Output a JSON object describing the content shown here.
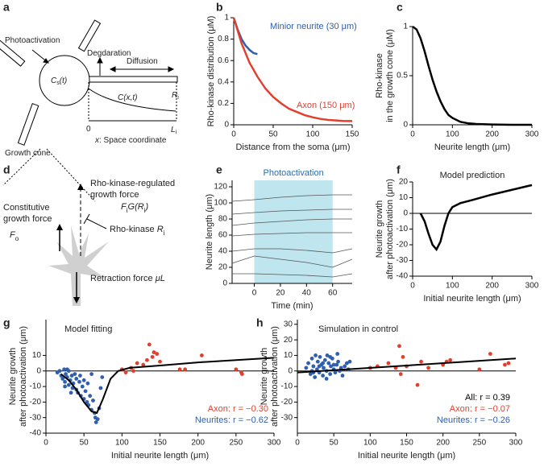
{
  "panels": [
    "a",
    "b",
    "c",
    "d",
    "e",
    "f",
    "g",
    "h"
  ],
  "diagram_a": {
    "labels": [
      {
        "parts": [
          {
            "t": "Photoactivation"
          }
        ]
      },
      {
        "parts": [
          {
            "t": "C",
            "i": true
          },
          {
            "t": "s",
            "sub": true
          },
          {
            "t": "(t)",
            "i": true
          }
        ]
      },
      {
        "parts": [
          {
            "t": "Degdaration"
          }
        ]
      },
      {
        "parts": [
          {
            "t": "Diffusion"
          }
        ]
      },
      {
        "parts": [
          {
            "t": "C(x,t)",
            "i": true
          }
        ]
      },
      {
        "parts": [
          {
            "t": "R",
            "i": true
          },
          {
            "t": "i",
            "sub": true
          }
        ]
      },
      {
        "parts": [
          {
            "t": "0"
          }
        ]
      },
      {
        "parts": [
          {
            "t": "L",
            "i": true
          },
          {
            "t": "i",
            "sub": true
          }
        ]
      },
      {
        "parts": [
          {
            "t": "x",
            "i": true
          },
          {
            "t": ": Space coordinate"
          }
        ]
      },
      {
        "parts": [
          {
            "t": "Growth cone"
          }
        ]
      }
    ]
  },
  "diagram_d": {
    "labels": [
      {
        "parts": [
          {
            "t": "Rho-kinase-regulated"
          }
        ]
      },
      {
        "parts": [
          {
            "t": "growth force"
          }
        ]
      },
      {
        "parts": [
          {
            "t": "F",
            "i": true
          },
          {
            "t": "i",
            "sub": true
          },
          {
            "t": "G(R",
            "i": true
          },
          {
            "t": "i",
            "sub": true
          },
          {
            "t": ")",
            "i": true
          }
        ]
      },
      {
        "parts": [
          {
            "t": "Constitutive"
          }
        ]
      },
      {
        "parts": [
          {
            "t": "growth force"
          }
        ]
      },
      {
        "parts": [
          {
            "t": "F",
            "i": true
          },
          {
            "t": "o",
            "sub": true
          }
        ]
      },
      {
        "parts": [
          {
            "t": "Rho-kinase "
          },
          {
            "t": "R",
            "i": true
          },
          {
            "t": "i",
            "sub": true
          }
        ]
      },
      {
        "parts": [
          {
            "t": "Retraction force "
          },
          {
            "t": "μL",
            "i": true
          }
        ]
      }
    ]
  },
  "chart_data": [
    {
      "type": "line",
      "xlabel": "Distance from the soma (μm)",
      "ylabel": [
        "Rho-kinase distribution (μM)"
      ],
      "xlim": [
        0,
        150
      ],
      "ylim": [
        0,
        1
      ],
      "xticks": [
        0,
        50,
        100,
        150
      ],
      "yticks": [
        0,
        0.2,
        0.4,
        0.6,
        0.8,
        1
      ],
      "series": [
        {
          "name": "Minior neurite (30 μm)",
          "color": "#2f5fae",
          "x": [
            0,
            5,
            10,
            15,
            20,
            25,
            30
          ],
          "values": [
            1,
            0.89,
            0.8,
            0.74,
            0.7,
            0.67,
            0.66
          ]
        },
        {
          "name": "Axon (150 μm)",
          "color": "#e2402e",
          "x": [
            0,
            10,
            20,
            30,
            40,
            50,
            60,
            70,
            80,
            90,
            100,
            110,
            120,
            130,
            140,
            150
          ],
          "values": [
            1,
            0.76,
            0.58,
            0.45,
            0.34,
            0.26,
            0.2,
            0.15,
            0.12,
            0.09,
            0.07,
            0.055,
            0.045,
            0.04,
            0.035,
            0.035
          ]
        }
      ]
    },
    {
      "type": "line",
      "xlabel": "Neurite length (μm)",
      "ylabel": [
        "Rho-kinase",
        "in the growth cone (μM)"
      ],
      "xlim": [
        0,
        300
      ],
      "ylim": [
        0,
        1
      ],
      "xticks": [
        0,
        100,
        200,
        300
      ],
      "yticks": [
        0,
        0.5,
        1
      ],
      "series": [
        {
          "color": "#000000",
          "x": [
            0,
            10,
            20,
            30,
            40,
            50,
            60,
            70,
            80,
            90,
            100,
            120,
            140,
            160,
            200,
            250,
            300
          ],
          "values": [
            1,
            0.97,
            0.88,
            0.75,
            0.6,
            0.46,
            0.34,
            0.24,
            0.16,
            0.1,
            0.07,
            0.03,
            0.015,
            0.008,
            0.003,
            0,
            0
          ]
        }
      ]
    },
    {
      "type": "line",
      "xlabel": "Time (min)",
      "ylabel": [
        "Neurite length (μm)"
      ],
      "xlim": [
        -17,
        75
      ],
      "ylim": [
        0,
        128
      ],
      "xticks": [
        0,
        20,
        40,
        60
      ],
      "yticks": [
        0,
        20,
        40,
        60,
        80,
        100,
        120
      ],
      "shade": {
        "xrange": [
          0,
          60
        ],
        "label": "Photoactivation",
        "color": "#bfe5ee"
      },
      "series": [
        {
          "color": "#555555",
          "x": [
            -17,
            0,
            20,
            40,
            60,
            75
          ],
          "values": [
            102,
            104,
            107,
            109,
            110,
            110
          ]
        },
        {
          "color": "#555555",
          "x": [
            -17,
            0,
            20,
            40,
            60,
            75
          ],
          "values": [
            86,
            88,
            90,
            91,
            92,
            92
          ]
        },
        {
          "color": "#555555",
          "x": [
            -17,
            0,
            20,
            40,
            60,
            75
          ],
          "values": [
            72,
            75,
            77,
            79,
            80,
            80
          ]
        },
        {
          "color": "#555555",
          "x": [
            -17,
            0,
            20,
            40,
            60,
            75
          ],
          "values": [
            59,
            61,
            62,
            63,
            63,
            63
          ]
        },
        {
          "color": "#555555",
          "x": [
            -17,
            0,
            20,
            40,
            60,
            75
          ],
          "values": [
            40,
            43,
            43,
            41,
            38,
            43
          ]
        },
        {
          "color": "#555555",
          "x": [
            -17,
            0,
            20,
            40,
            60,
            75
          ],
          "values": [
            25,
            34,
            30,
            26,
            20,
            30
          ]
        },
        {
          "color": "#555555",
          "x": [
            -17,
            0,
            20,
            40,
            60,
            75
          ],
          "values": [
            12,
            12,
            11,
            10,
            8,
            12
          ]
        }
      ]
    },
    {
      "type": "line",
      "title": "Model prediction",
      "xlabel": "Initial neurite length (μm)",
      "ylabel": [
        "Neurite growth",
        "after photoactivation (μm)"
      ],
      "xlim": [
        0,
        300
      ],
      "ylim": [
        -40,
        20
      ],
      "xticks": [
        0,
        100,
        200,
        300
      ],
      "yticks": [
        -40,
        -30,
        -20,
        -10,
        0,
        10,
        20
      ],
      "hline": 0,
      "series": [
        {
          "color": "#000000",
          "x": [
            20,
            30,
            40,
            50,
            60,
            70,
            80,
            90,
            100,
            120,
            150,
            200,
            250,
            300
          ],
          "values": [
            0,
            -5,
            -13,
            -20,
            -23,
            -18,
            -8,
            0,
            4,
            6.5,
            8.5,
            12,
            15,
            18
          ]
        }
      ]
    },
    {
      "type": "scatter",
      "title": "Model fitting",
      "xlabel": "Initial neurite length (μm)",
      "ylabel": [
        "Neurite growth",
        "after photoactivation (μm)"
      ],
      "xlim": [
        0,
        300
      ],
      "ylim": [
        -40,
        33
      ],
      "xticks": [
        0,
        50,
        100,
        150,
        200,
        250,
        300
      ],
      "yticks": [
        -40,
        -30,
        -20,
        -10,
        0,
        10
      ],
      "hline": 0,
      "annotations": [
        {
          "text": "Axon: r = −0.30",
          "color": "#e2402e"
        },
        {
          "text": "Neurites: r = −0.62",
          "color": "#2f5fae"
        }
      ],
      "series": [
        {
          "color": "#2f5fae",
          "x": [
            15,
            18,
            20,
            22,
            24,
            25,
            26,
            28,
            30,
            30,
            32,
            34,
            35,
            36,
            38,
            40,
            40,
            42,
            44,
            45,
            46,
            48,
            50,
            50,
            52,
            54,
            55,
            56,
            58,
            60,
            62,
            64,
            65,
            66,
            68,
            70,
            72,
            74,
            25,
            33,
            28,
            60
          ],
          "values": [
            -1,
            0,
            -3,
            -5,
            1,
            -7,
            -2,
            -4,
            -9,
            0,
            -6,
            -3,
            -11,
            -8,
            -2,
            -5,
            -12,
            -14,
            -7,
            -3,
            -16,
            -10,
            -18,
            -6,
            -13,
            -20,
            -8,
            -22,
            -16,
            -25,
            -19,
            -27,
            -30,
            -33,
            -31,
            -24,
            -11,
            -4,
            -10,
            -14,
            1,
            -2
          ]
        },
        {
          "color": "#e2402e",
          "x": [
            100,
            105,
            112,
            120,
            128,
            133,
            136,
            140,
            142,
            146,
            150,
            176,
            183,
            205,
            250,
            257,
            258,
            115
          ],
          "values": [
            1,
            -1,
            2,
            5,
            4,
            7,
            17,
            9,
            12,
            11,
            6,
            1,
            1,
            10,
            1,
            -1,
            -2,
            0
          ]
        },
        {
          "type": "line",
          "color": "#000000",
          "x": [
            20,
            30,
            40,
            50,
            60,
            67,
            75,
            85,
            95,
            110,
            150,
            200,
            250,
            300
          ],
          "values": [
            -2,
            -6,
            -12,
            -20,
            -26,
            -27,
            -18,
            -5,
            0,
            2,
            3.5,
            5.5,
            7,
            8.5
          ]
        }
      ]
    },
    {
      "type": "scatter",
      "title": "Simulation in control",
      "xlabel": "Initial neurite length (μm)",
      "ylabel": [
        "Neurite growth",
        "after photoactivation (μm)"
      ],
      "xlim": [
        0,
        300
      ],
      "ylim": [
        -40,
        33
      ],
      "xticks": [
        0,
        50,
        100,
        150,
        200,
        250,
        300
      ],
      "yticks": [
        -30,
        -20,
        -10,
        0,
        10,
        20,
        30
      ],
      "hline": 0,
      "annotations": [
        {
          "text": "All: r = 0.39",
          "color": "#000000"
        },
        {
          "text": "Axon: r = −0.07",
          "color": "#e2402e"
        },
        {
          "text": "Neurites: r = −0.26",
          "color": "#2f5fae"
        }
      ],
      "series": [
        {
          "color": "#2f5fae",
          "x": [
            12,
            15,
            18,
            20,
            22,
            24,
            25,
            27,
            28,
            30,
            31,
            33,
            35,
            36,
            38,
            40,
            41,
            43,
            45,
            46,
            48,
            50,
            52,
            54,
            56,
            58,
            60,
            62,
            65,
            68,
            70,
            72,
            22,
            35,
            45,
            55,
            30,
            40,
            50,
            20
          ],
          "values": [
            2,
            5,
            -2,
            8,
            3,
            -4,
            10,
            1,
            6,
            -1,
            9,
            4,
            -3,
            2,
            7,
            0,
            10,
            5,
            -2,
            3,
            8,
            1,
            -1,
            4,
            6,
            0,
            2,
            -3,
            3,
            5,
            1,
            6,
            -1,
            5,
            9,
            11,
            3,
            -5,
            4,
            0
          ]
        },
        {
          "color": "#e2402e",
          "x": [
            100,
            110,
            125,
            135,
            140,
            142,
            145,
            150,
            165,
            170,
            200,
            205,
            210,
            250,
            265,
            285,
            290,
            180
          ],
          "values": [
            2,
            3,
            5,
            2,
            16,
            -2,
            9,
            3,
            -9,
            6,
            4,
            6,
            7,
            1,
            11,
            4,
            5,
            2
          ]
        },
        {
          "type": "line",
          "color": "#000000",
          "x": [
            0,
            300
          ],
          "values": [
            -1,
            8
          ]
        }
      ]
    }
  ]
}
